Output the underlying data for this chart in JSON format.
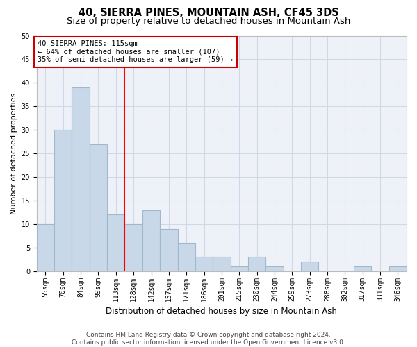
{
  "title": "40, SIERRA PINES, MOUNTAIN ASH, CF45 3DS",
  "subtitle": "Size of property relative to detached houses in Mountain Ash",
  "xlabel": "Distribution of detached houses by size in Mountain Ash",
  "ylabel": "Number of detached properties",
  "bar_labels": [
    "55sqm",
    "70sqm",
    "84sqm",
    "99sqm",
    "113sqm",
    "128sqm",
    "142sqm",
    "157sqm",
    "171sqm",
    "186sqm",
    "201sqm",
    "215sqm",
    "230sqm",
    "244sqm",
    "259sqm",
    "273sqm",
    "288sqm",
    "302sqm",
    "317sqm",
    "331sqm",
    "346sqm"
  ],
  "bar_heights": [
    10,
    30,
    39,
    27,
    12,
    10,
    13,
    9,
    6,
    3,
    3,
    1,
    3,
    1,
    0,
    2,
    0,
    0,
    1,
    0,
    1
  ],
  "bar_color": "#c8d8e8",
  "bar_edgecolor": "#a0b8cc",
  "bar_linewidth": 0.8,
  "red_line_index": 4,
  "annotation_title": "40 SIERRA PINES: 115sqm",
  "annotation_line1": "← 64% of detached houses are smaller (107)",
  "annotation_line2": "35% of semi-detached houses are larger (59) →",
  "annotation_box_color": "#cc0000",
  "ylim": [
    0,
    50
  ],
  "yticks": [
    0,
    5,
    10,
    15,
    20,
    25,
    30,
    35,
    40,
    45,
    50
  ],
  "grid_color": "#d0d8e8",
  "background_color": "#eef2f8",
  "footer_line1": "Contains HM Land Registry data © Crown copyright and database right 2024.",
  "footer_line2": "Contains public sector information licensed under the Open Government Licence v3.0.",
  "title_fontsize": 10.5,
  "subtitle_fontsize": 9.5,
  "xlabel_fontsize": 8.5,
  "ylabel_fontsize": 8,
  "tick_fontsize": 7,
  "footer_fontsize": 6.5,
  "annotation_fontsize": 7.5
}
